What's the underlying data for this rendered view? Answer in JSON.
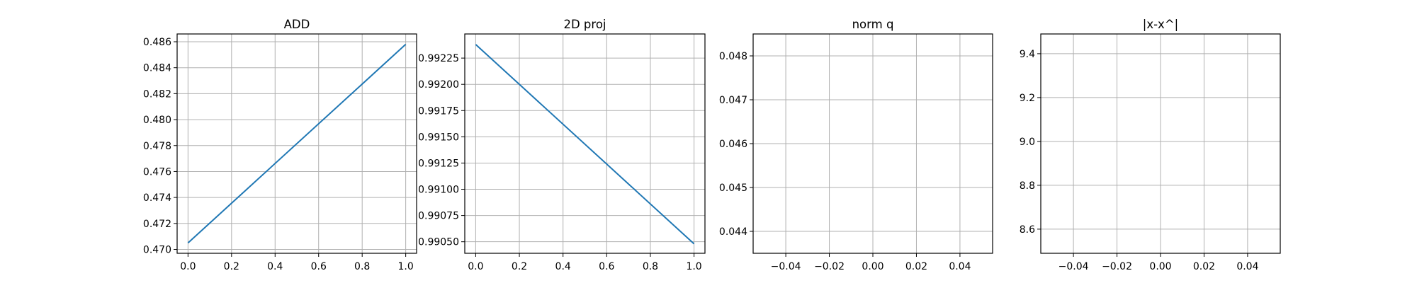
{
  "chart_data": [
    {
      "type": "line",
      "title": "ADD",
      "xlabel": "",
      "ylabel": "",
      "grid": true,
      "xlim": [
        -0.05,
        1.05
      ],
      "ylim": [
        0.4697,
        0.4866
      ],
      "xticks": [
        0.0,
        0.2,
        0.4,
        0.6,
        0.8,
        1.0
      ],
      "xtick_labels": [
        "0.0",
        "0.2",
        "0.4",
        "0.6",
        "0.8",
        "1.0"
      ],
      "yticks": [
        0.47,
        0.472,
        0.474,
        0.476,
        0.478,
        0.48,
        0.482,
        0.484,
        0.486
      ],
      "ytick_labels": [
        "0.470",
        "0.472",
        "0.474",
        "0.476",
        "0.478",
        "0.480",
        "0.482",
        "0.484",
        "0.486"
      ],
      "series": [
        {
          "x": [
            0.0,
            1.0
          ],
          "y": [
            0.4705,
            0.4858
          ],
          "color": "#1f77b4"
        }
      ]
    },
    {
      "type": "line",
      "title": "2D proj",
      "xlabel": "",
      "ylabel": "",
      "grid": true,
      "xlim": [
        -0.05,
        1.05
      ],
      "ylim": [
        0.99039,
        0.99248
      ],
      "xticks": [
        0.0,
        0.2,
        0.4,
        0.6,
        0.8,
        1.0
      ],
      "xtick_labels": [
        "0.0",
        "0.2",
        "0.4",
        "0.6",
        "0.8",
        "1.0"
      ],
      "yticks": [
        0.9905,
        0.99075,
        0.991,
        0.99125,
        0.9915,
        0.99175,
        0.992,
        0.99225
      ],
      "ytick_labels": [
        "0.99050",
        "0.99075",
        "0.99100",
        "0.99125",
        "0.99150",
        "0.99175",
        "0.99200",
        "0.99225"
      ],
      "series": [
        {
          "x": [
            0.0,
            1.0
          ],
          "y": [
            0.99238,
            0.99048
          ],
          "color": "#1f77b4"
        }
      ]
    },
    {
      "type": "line",
      "title": "norm q",
      "xlabel": "",
      "ylabel": "",
      "grid": true,
      "xlim": [
        -0.055,
        0.055
      ],
      "ylim": [
        0.0435,
        0.0485
      ],
      "xticks": [
        -0.04,
        -0.02,
        0.0,
        0.02,
        0.04
      ],
      "xtick_labels": [
        "−0.04",
        "−0.02",
        "0.00",
        "0.02",
        "0.04"
      ],
      "yticks": [
        0.044,
        0.045,
        0.046,
        0.047,
        0.048
      ],
      "ytick_labels": [
        "0.044",
        "0.045",
        "0.046",
        "0.047",
        "0.048"
      ],
      "series": []
    },
    {
      "type": "line",
      "title": "|x-x^|",
      "xlabel": "",
      "ylabel": "",
      "grid": true,
      "xlim": [
        -0.055,
        0.055
      ],
      "ylim": [
        8.49,
        9.49
      ],
      "xticks": [
        -0.04,
        -0.02,
        0.0,
        0.02,
        0.04
      ],
      "xtick_labels": [
        "−0.04",
        "−0.02",
        "0.00",
        "0.02",
        "0.04"
      ],
      "yticks": [
        8.6,
        8.8,
        9.0,
        9.2,
        9.4
      ],
      "ytick_labels": [
        "8.6",
        "8.8",
        "9.0",
        "9.2",
        "9.4"
      ],
      "series": []
    }
  ]
}
